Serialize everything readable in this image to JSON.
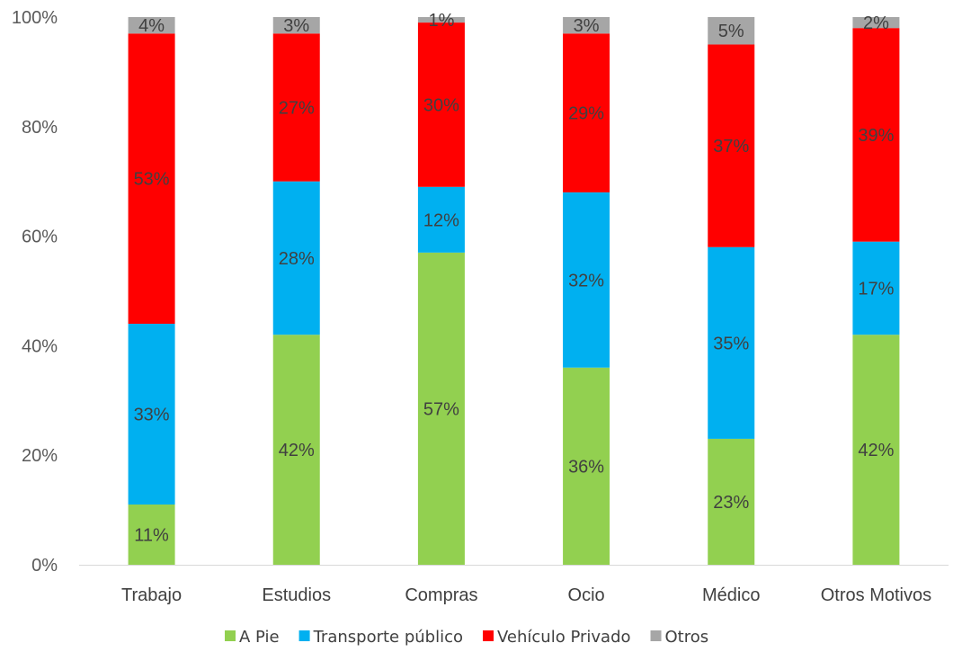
{
  "chart_data": {
    "type": "bar",
    "stacked": true,
    "categories": [
      "Trabajo",
      "Estudios",
      "Compras",
      "Ocio",
      "Médico",
      "Otros Motivos"
    ],
    "series": [
      {
        "name": "A Pie",
        "color": "#92D050",
        "values": [
          11,
          42,
          57,
          36,
          23,
          42
        ],
        "labels": [
          "11%",
          "42%",
          "57%",
          "36%",
          "23%",
          "42%"
        ]
      },
      {
        "name": "Transporte público",
        "color": "#00B0F0",
        "values": [
          33,
          28,
          12,
          32,
          35,
          17
        ],
        "labels": [
          "33%",
          "28%",
          "12%",
          "32%",
          "35%",
          "17%"
        ]
      },
      {
        "name": "Vehículo Privado",
        "color": "#FF0000",
        "values": [
          53,
          27,
          30,
          29,
          37,
          39
        ],
        "labels": [
          "53%",
          "27%",
          "30%",
          "29%",
          "37%",
          "39%"
        ]
      },
      {
        "name": "Otros",
        "color": "#A6A6A6",
        "values": [
          4,
          3,
          1,
          3,
          5,
          2
        ],
        "labels": [
          "4%",
          "3%",
          "1%",
          "3%",
          "5%",
          "2%"
        ]
      }
    ],
    "ylim": [
      0,
      100
    ],
    "yticks": [
      "0%",
      "20%",
      "40%",
      "60%",
      "80%",
      "100%"
    ],
    "grid": false,
    "legend_position": "bottom"
  }
}
